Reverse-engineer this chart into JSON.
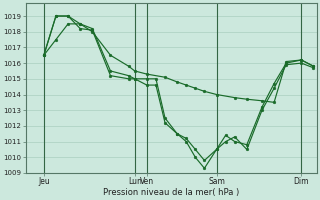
{
  "bg_color": "#cce8dd",
  "grid_color": "#aacfbf",
  "line_color": "#1a6b2a",
  "marker_color": "#1a6b2a",
  "xlabel": "Pression niveau de la mer( hPa )",
  "ylim": [
    1009,
    1019.8
  ],
  "yticks": [
    1009,
    1010,
    1011,
    1012,
    1013,
    1014,
    1015,
    1016,
    1017,
    1018,
    1019
  ],
  "xtick_labels": [
    "Jeu",
    "Lun",
    "Ven",
    "Sam",
    "Dim"
  ],
  "xtick_positions": [
    0.1,
    0.4,
    0.44,
    0.67,
    0.95
  ],
  "xlim": [
    0.04,
    1.0
  ],
  "line1_x": [
    0.1,
    0.14,
    0.18,
    0.22,
    0.26,
    0.32,
    0.38,
    0.4,
    0.44,
    0.47,
    0.5,
    0.54,
    0.57,
    0.6,
    0.63,
    0.67,
    0.7,
    0.73,
    0.77,
    0.82,
    0.86,
    0.9,
    0.95,
    0.99
  ],
  "line1_y": [
    1016.5,
    1019.0,
    1019.0,
    1018.2,
    1018.1,
    1015.2,
    1015.0,
    1015.0,
    1014.6,
    1014.6,
    1012.2,
    1011.5,
    1011.0,
    1010.0,
    1009.3,
    1010.5,
    1011.0,
    1011.3,
    1010.5,
    1013.0,
    1014.4,
    1015.9,
    1016.0,
    1015.7
  ],
  "line2_x": [
    0.1,
    0.14,
    0.18,
    0.22,
    0.26,
    0.32,
    0.38,
    0.4,
    0.44,
    0.47,
    0.5,
    0.54,
    0.57,
    0.6,
    0.63,
    0.67,
    0.7,
    0.73,
    0.77,
    0.82,
    0.86,
    0.9,
    0.95,
    0.99
  ],
  "line2_y": [
    1016.5,
    1019.0,
    1019.0,
    1018.5,
    1018.2,
    1015.5,
    1015.2,
    1015.0,
    1015.0,
    1015.0,
    1012.5,
    1011.5,
    1011.2,
    1010.5,
    1009.8,
    1010.5,
    1011.4,
    1011.0,
    1010.8,
    1013.2,
    1014.7,
    1016.0,
    1016.2,
    1015.8
  ],
  "line3_x": [
    0.1,
    0.14,
    0.18,
    0.22,
    0.26,
    0.32,
    0.38,
    0.4,
    0.44,
    0.5,
    0.54,
    0.57,
    0.6,
    0.63,
    0.67,
    0.73,
    0.77,
    0.82,
    0.86,
    0.9,
    0.95,
    0.99
  ],
  "line3_y": [
    1016.5,
    1017.5,
    1018.5,
    1018.5,
    1018.0,
    1016.5,
    1015.8,
    1015.5,
    1015.3,
    1015.1,
    1014.8,
    1014.6,
    1014.4,
    1014.2,
    1014.0,
    1013.8,
    1013.7,
    1013.6,
    1013.5,
    1016.1,
    1016.2,
    1015.8
  ],
  "vline_positions": [
    0.1,
    0.4,
    0.44,
    0.67,
    0.95
  ],
  "vline_color": "#336644"
}
